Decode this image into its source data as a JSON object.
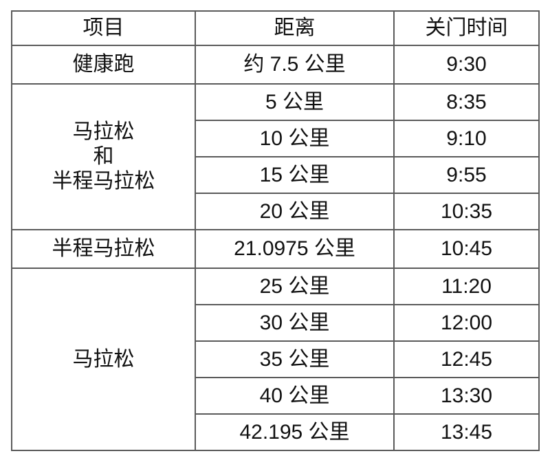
{
  "table": {
    "headers": [
      "项目",
      "距离",
      "关门时间"
    ],
    "rows": [
      {
        "item": "健康跑",
        "item_rowspan": 1,
        "distance": "约 7.5 公里",
        "cutoff": "9:30"
      },
      {
        "item": "马拉松\n和\n半程马拉松",
        "item_rowspan": 4,
        "distance": "5 公里",
        "cutoff": "8:35"
      },
      {
        "distance": "10 公里",
        "cutoff": "9:10"
      },
      {
        "distance": "15 公里",
        "cutoff": "9:55"
      },
      {
        "distance": "20 公里",
        "cutoff": "10:35"
      },
      {
        "item": "半程马拉松",
        "item_rowspan": 1,
        "distance": "21.0975 公里",
        "cutoff": "10:45"
      },
      {
        "item": "马拉松",
        "item_rowspan": 5,
        "distance": "25 公里",
        "cutoff": "11:20"
      },
      {
        "distance": "30 公里",
        "cutoff": "12:00"
      },
      {
        "distance": "35 公里",
        "cutoff": "12:45"
      },
      {
        "distance": "40 公里",
        "cutoff": "13:30"
      },
      {
        "distance": "42.195 公里",
        "cutoff": "13:45"
      }
    ],
    "border_color": "#5a5a5a",
    "text_color": "#111111",
    "background_color": "#ffffff"
  }
}
